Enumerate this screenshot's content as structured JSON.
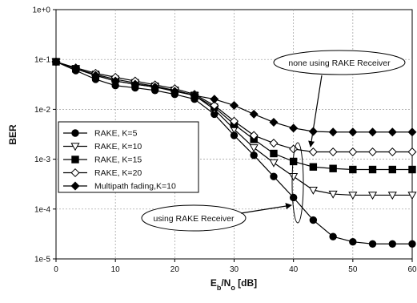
{
  "chart_data": {
    "type": "line",
    "xlabel_main": "E",
    "xlabel_sub1": "b",
    "xlabel_mid": "/N",
    "xlabel_sub2": "o",
    "xlabel_unit": " [dB]",
    "ylabel": "BER",
    "x_scale": "linear",
    "y_scale": "log",
    "xlim": [
      0,
      60
    ],
    "ylim": [
      1e-05,
      1
    ],
    "x_ticks": [
      "0",
      "10",
      "20",
      "30",
      "40",
      "50",
      "60"
    ],
    "y_ticks": [
      "1e+0",
      "1e-1",
      "1e-2",
      "1e-3",
      "1e-4",
      "1e-5"
    ],
    "grid": true,
    "legend_position": "left",
    "x": [
      0,
      3.33,
      6.67,
      10,
      13.33,
      16.67,
      20,
      23.33,
      26.67,
      30,
      33.33,
      36.67,
      40,
      43.33,
      46.67,
      50,
      53.33,
      56.67,
      60
    ],
    "series": [
      {
        "name": "RAKE, K=5",
        "marker": "circle-filled",
        "values": [
          0.09,
          0.06,
          0.04,
          0.03,
          0.027,
          0.024,
          0.02,
          0.016,
          0.008,
          0.003,
          0.0012,
          0.00045,
          0.00017,
          6e-05,
          2.8e-05,
          2.2e-05,
          2e-05,
          2e-05,
          2e-05
        ]
      },
      {
        "name": "RAKE, K=10",
        "marker": "triangle-down-open",
        "values": [
          0.09,
          0.065,
          0.048,
          0.037,
          0.032,
          0.028,
          0.024,
          0.019,
          0.01,
          0.004,
          0.0017,
          0.00085,
          0.00045,
          0.00024,
          0.0002,
          0.00019,
          0.00019,
          0.00019,
          0.00019
        ]
      },
      {
        "name": "RAKE, K=15",
        "marker": "square-filled",
        "values": [
          0.09,
          0.065,
          0.05,
          0.04,
          0.034,
          0.029,
          0.024,
          0.019,
          0.011,
          0.005,
          0.0025,
          0.0013,
          0.0009,
          0.0007,
          0.00065,
          0.00062,
          0.00062,
          0.00062,
          0.00062
        ]
      },
      {
        "name": "RAKE, K=20",
        "marker": "diamond-open",
        "values": [
          0.09,
          0.068,
          0.053,
          0.044,
          0.037,
          0.031,
          0.026,
          0.02,
          0.012,
          0.0058,
          0.003,
          0.0021,
          0.0016,
          0.0014,
          0.0014,
          0.0014,
          0.0014,
          0.0014,
          0.0014
        ]
      },
      {
        "name": "Multipath fading,K=10",
        "marker": "diamond-filled",
        "values": [
          0.09,
          0.065,
          0.048,
          0.037,
          0.032,
          0.028,
          0.023,
          0.019,
          0.016,
          0.012,
          0.008,
          0.0055,
          0.0042,
          0.0036,
          0.0035,
          0.0035,
          0.0035,
          0.0035,
          0.0035
        ]
      }
    ],
    "annotations": [
      "none using RAKE Receiver",
      "using RAKE Receiver"
    ]
  }
}
